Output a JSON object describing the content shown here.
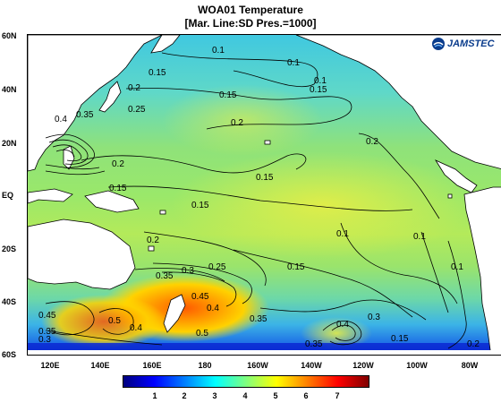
{
  "header": {
    "title_line1": "WOA01 Temperature",
    "title_line2": "[Mar. Line:SD  Pres.=1000]"
  },
  "logo": {
    "text": "JAMSTEC",
    "icon": "jamstec-logo-icon"
  },
  "map": {
    "region": "Pacific Ocean",
    "lat_labels": [
      "60N",
      "40N",
      "20N",
      "EQ",
      "20S",
      "40S",
      "60S"
    ],
    "lon_labels": [
      "120E",
      "140E",
      "160E",
      "180",
      "160W",
      "140W",
      "120W",
      "100W",
      "80W"
    ],
    "contour_labels": [
      "0.1",
      "0.1",
      "0.15",
      "0.2",
      "0.25",
      "0.35",
      "0.4",
      "0.2",
      "0.15",
      "0.2",
      "0.15",
      "0.15",
      "0.1",
      "0.15",
      "0.1",
      "0.2",
      "0.15",
      "0.2",
      "0.1",
      "0.3",
      "0.35",
      "0.25",
      "0.15",
      "0.45",
      "0.4",
      "0.35",
      "0.5",
      "0.45",
      "0.3",
      "0.35",
      "0.4",
      "0.5",
      "0.35",
      "0.4",
      "0.15",
      "0.2",
      "0.1",
      "0.3"
    ],
    "colors": {
      "land": "#ffffff",
      "coastline": "#000000",
      "contour": "#000000",
      "cool": "#46c8e6",
      "mid": "#a5e65a",
      "warm": "#ffc800",
      "hot": "#ff6400",
      "deep": "#0a28d2"
    }
  },
  "colorbar": {
    "labels": [
      "1",
      "2",
      "3",
      "4",
      "5",
      "6",
      "7"
    ],
    "colors": [
      "#00007f",
      "#0000ff",
      "#007fff",
      "#00ffff",
      "#7fff7f",
      "#ffff00",
      "#ff7f00",
      "#ff0000",
      "#7f0000"
    ]
  }
}
